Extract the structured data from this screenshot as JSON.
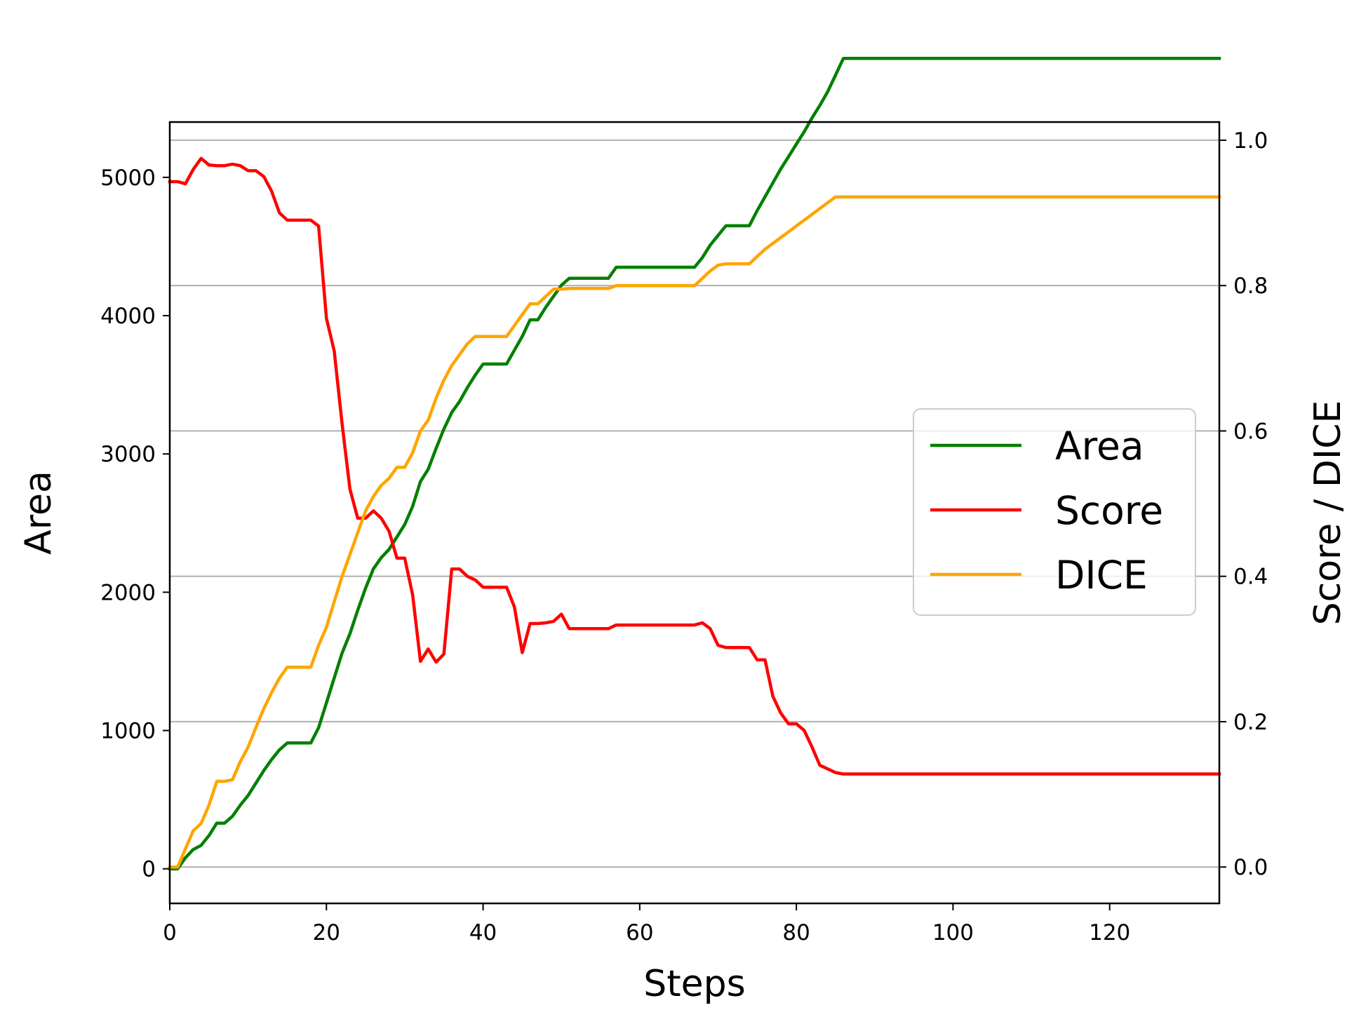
{
  "chart_data": {
    "type": "line",
    "xlabel": "Steps",
    "ylabel": "Area",
    "ylabel_right": "Score / DICE",
    "xlim": [
      0,
      134
    ],
    "ylim": [
      -250,
      5400
    ],
    "ylim_right": [
      -0.05,
      1.025
    ],
    "x_ticks": [
      0,
      20,
      40,
      60,
      80,
      100,
      120
    ],
    "y_ticks": [
      0,
      1000,
      2000,
      3000,
      4000,
      5000
    ],
    "y_right_ticks": [
      0.0,
      0.2,
      0.4,
      0.6,
      0.8,
      1.0
    ],
    "y_right_tick_labels": [
      "0.0",
      "0.2",
      "0.4",
      "0.6",
      "0.8",
      "1.0"
    ],
    "grid": "horizontal, right axis",
    "legend_position": "center-right",
    "series": [
      {
        "name": "Area",
        "axis": "left",
        "color": "#008000",
        "points": [
          [
            0,
            0
          ],
          [
            1,
            0
          ],
          [
            2,
            80
          ],
          [
            3,
            140
          ],
          [
            4,
            170
          ],
          [
            5,
            240
          ],
          [
            6,
            330
          ],
          [
            7,
            330
          ],
          [
            8,
            380
          ],
          [
            9,
            460
          ],
          [
            10,
            530
          ],
          [
            11,
            620
          ],
          [
            12,
            710
          ],
          [
            13,
            790
          ],
          [
            14,
            860
          ],
          [
            15,
            910
          ],
          [
            16,
            910
          ],
          [
            17,
            910
          ],
          [
            18,
            910
          ],
          [
            19,
            1020
          ],
          [
            20,
            1200
          ],
          [
            21,
            1380
          ],
          [
            22,
            1560
          ],
          [
            23,
            1700
          ],
          [
            24,
            1870
          ],
          [
            25,
            2030
          ],
          [
            26,
            2170
          ],
          [
            27,
            2250
          ],
          [
            28,
            2310
          ],
          [
            29,
            2400
          ],
          [
            30,
            2490
          ],
          [
            31,
            2620
          ],
          [
            32,
            2800
          ],
          [
            33,
            2890
          ],
          [
            34,
            3040
          ],
          [
            35,
            3180
          ],
          [
            36,
            3300
          ],
          [
            37,
            3380
          ],
          [
            38,
            3480
          ],
          [
            39,
            3570
          ],
          [
            40,
            3650
          ],
          [
            41,
            3650
          ],
          [
            42,
            3650
          ],
          [
            43,
            3650
          ],
          [
            44,
            3750
          ],
          [
            45,
            3850
          ],
          [
            46,
            3970
          ],
          [
            47,
            3970
          ],
          [
            48,
            4060
          ],
          [
            49,
            4140
          ],
          [
            50,
            4220
          ],
          [
            51,
            4270
          ],
          [
            52,
            4270
          ],
          [
            53,
            4270
          ],
          [
            54,
            4270
          ],
          [
            55,
            4270
          ],
          [
            56,
            4270
          ],
          [
            57,
            4350
          ],
          [
            58,
            4350
          ],
          [
            59,
            4350
          ],
          [
            60,
            4350
          ],
          [
            61,
            4350
          ],
          [
            62,
            4350
          ],
          [
            63,
            4350
          ],
          [
            64,
            4350
          ],
          [
            65,
            4350
          ],
          [
            66,
            4350
          ],
          [
            67,
            4350
          ],
          [
            68,
            4420
          ],
          [
            69,
            4510
          ],
          [
            70,
            4580
          ],
          [
            71,
            4650
          ],
          [
            72,
            4650
          ],
          [
            73,
            4650
          ],
          [
            74,
            4650
          ],
          [
            75,
            4760
          ],
          [
            76,
            4860
          ],
          [
            77,
            4960
          ],
          [
            78,
            5060
          ],
          [
            79,
            5150
          ],
          [
            80,
            5240
          ],
          [
            81,
            5330
          ],
          [
            82,
            5430
          ],
          [
            83,
            5520
          ],
          [
            84,
            5620
          ],
          [
            85,
            5740
          ],
          [
            86,
            5860
          ],
          [
            134,
            5860
          ]
        ]
      },
      {
        "name": "Score",
        "axis": "right",
        "color": "#ff0000",
        "points": [
          [
            0,
            0.943
          ],
          [
            1,
            0.943
          ],
          [
            2,
            0.94
          ],
          [
            3,
            0.96
          ],
          [
            4,
            0.975
          ],
          [
            5,
            0.966
          ],
          [
            6,
            0.965
          ],
          [
            7,
            0.965
          ],
          [
            8,
            0.967
          ],
          [
            9,
            0.965
          ],
          [
            10,
            0.958
          ],
          [
            11,
            0.958
          ],
          [
            12,
            0.95
          ],
          [
            13,
            0.93
          ],
          [
            14,
            0.9
          ],
          [
            15,
            0.89
          ],
          [
            16,
            0.89
          ],
          [
            17,
            0.89
          ],
          [
            18,
            0.89
          ],
          [
            19,
            0.882
          ],
          [
            20,
            0.755
          ],
          [
            21,
            0.71
          ],
          [
            22,
            0.61
          ],
          [
            23,
            0.52
          ],
          [
            24,
            0.48
          ],
          [
            25,
            0.48
          ],
          [
            26,
            0.49
          ],
          [
            27,
            0.48
          ],
          [
            28,
            0.462
          ],
          [
            29,
            0.425
          ],
          [
            30,
            0.425
          ],
          [
            31,
            0.375
          ],
          [
            32,
            0.283
          ],
          [
            33,
            0.3
          ],
          [
            34,
            0.282
          ],
          [
            35,
            0.293
          ],
          [
            36,
            0.41
          ],
          [
            37,
            0.41
          ],
          [
            38,
            0.4
          ],
          [
            39,
            0.395
          ],
          [
            40,
            0.385
          ],
          [
            41,
            0.385
          ],
          [
            42,
            0.385
          ],
          [
            43,
            0.385
          ],
          [
            44,
            0.358
          ],
          [
            45,
            0.295
          ],
          [
            46,
            0.335
          ],
          [
            47,
            0.335
          ],
          [
            48,
            0.336
          ],
          [
            49,
            0.338
          ],
          [
            50,
            0.348
          ],
          [
            51,
            0.328
          ],
          [
            52,
            0.328
          ],
          [
            53,
            0.328
          ],
          [
            54,
            0.328
          ],
          [
            55,
            0.328
          ],
          [
            56,
            0.328
          ],
          [
            57,
            0.333
          ],
          [
            58,
            0.333
          ],
          [
            59,
            0.333
          ],
          [
            60,
            0.333
          ],
          [
            61,
            0.333
          ],
          [
            62,
            0.333
          ],
          [
            63,
            0.333
          ],
          [
            64,
            0.333
          ],
          [
            65,
            0.333
          ],
          [
            66,
            0.333
          ],
          [
            67,
            0.333
          ],
          [
            68,
            0.336
          ],
          [
            69,
            0.328
          ],
          [
            70,
            0.305
          ],
          [
            71,
            0.302
          ],
          [
            72,
            0.302
          ],
          [
            73,
            0.302
          ],
          [
            74,
            0.302
          ],
          [
            75,
            0.285
          ],
          [
            76,
            0.285
          ],
          [
            77,
            0.235
          ],
          [
            78,
            0.212
          ],
          [
            79,
            0.197
          ],
          [
            80,
            0.197
          ],
          [
            81,
            0.188
          ],
          [
            82,
            0.165
          ],
          [
            83,
            0.14
          ],
          [
            84,
            0.135
          ],
          [
            85,
            0.13
          ],
          [
            86,
            0.128
          ],
          [
            134,
            0.128
          ]
        ]
      },
      {
        "name": "DICE",
        "axis": "right",
        "color": "#ffa500",
        "points": [
          [
            0,
            0.0
          ],
          [
            1,
            0.0
          ],
          [
            2,
            0.025
          ],
          [
            3,
            0.05
          ],
          [
            4,
            0.06
          ],
          [
            5,
            0.085
          ],
          [
            6,
            0.118
          ],
          [
            7,
            0.118
          ],
          [
            8,
            0.12
          ],
          [
            9,
            0.145
          ],
          [
            10,
            0.165
          ],
          [
            11,
            0.192
          ],
          [
            12,
            0.218
          ],
          [
            13,
            0.24
          ],
          [
            14,
            0.26
          ],
          [
            15,
            0.275
          ],
          [
            16,
            0.275
          ],
          [
            17,
            0.275
          ],
          [
            18,
            0.275
          ],
          [
            19,
            0.305
          ],
          [
            20,
            0.33
          ],
          [
            21,
            0.365
          ],
          [
            22,
            0.4
          ],
          [
            23,
            0.43
          ],
          [
            24,
            0.46
          ],
          [
            25,
            0.49
          ],
          [
            26,
            0.51
          ],
          [
            27,
            0.525
          ],
          [
            28,
            0.535
          ],
          [
            29,
            0.55
          ],
          [
            30,
            0.55
          ],
          [
            31,
            0.57
          ],
          [
            32,
            0.6
          ],
          [
            33,
            0.615
          ],
          [
            34,
            0.645
          ],
          [
            35,
            0.67
          ],
          [
            36,
            0.69
          ],
          [
            37,
            0.705
          ],
          [
            38,
            0.72
          ],
          [
            39,
            0.73
          ],
          [
            40,
            0.73
          ],
          [
            41,
            0.73
          ],
          [
            42,
            0.73
          ],
          [
            43,
            0.73
          ],
          [
            44,
            0.745
          ],
          [
            45,
            0.76
          ],
          [
            46,
            0.775
          ],
          [
            47,
            0.775
          ],
          [
            48,
            0.785
          ],
          [
            49,
            0.795
          ],
          [
            50,
            0.795
          ],
          [
            51,
            0.796
          ],
          [
            52,
            0.796
          ],
          [
            53,
            0.796
          ],
          [
            54,
            0.796
          ],
          [
            55,
            0.796
          ],
          [
            56,
            0.796
          ],
          [
            57,
            0.8
          ],
          [
            58,
            0.8
          ],
          [
            59,
            0.8
          ],
          [
            60,
            0.8
          ],
          [
            61,
            0.8
          ],
          [
            62,
            0.8
          ],
          [
            63,
            0.8
          ],
          [
            64,
            0.8
          ],
          [
            65,
            0.8
          ],
          [
            66,
            0.8
          ],
          [
            67,
            0.8
          ],
          [
            68,
            0.81
          ],
          [
            69,
            0.82
          ],
          [
            70,
            0.828
          ],
          [
            71,
            0.83
          ],
          [
            72,
            0.83
          ],
          [
            73,
            0.83
          ],
          [
            74,
            0.83
          ],
          [
            75,
            0.84
          ],
          [
            76,
            0.85
          ],
          [
            77,
            0.858
          ],
          [
            78,
            0.866
          ],
          [
            79,
            0.874
          ],
          [
            80,
            0.882
          ],
          [
            81,
            0.89
          ],
          [
            82,
            0.898
          ],
          [
            83,
            0.906
          ],
          [
            84,
            0.914
          ],
          [
            85,
            0.922
          ],
          [
            134,
            0.922
          ]
        ]
      }
    ]
  }
}
